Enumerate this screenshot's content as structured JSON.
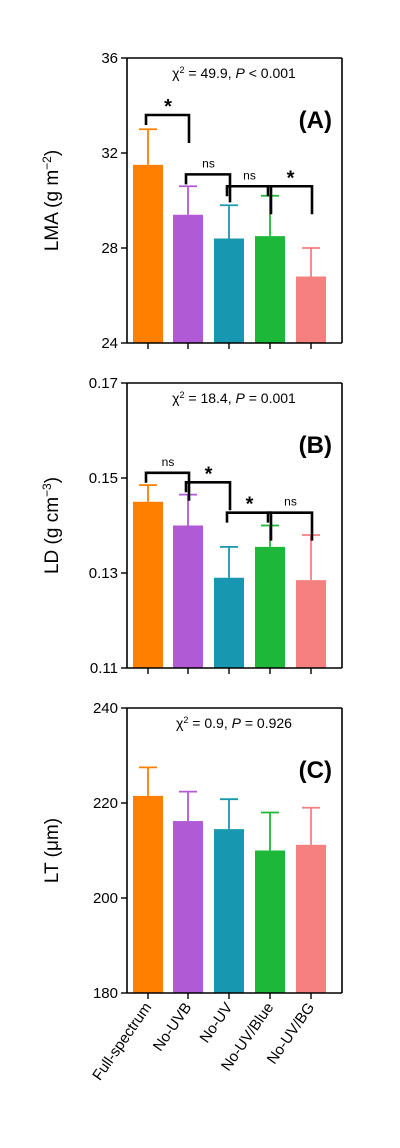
{
  "categories": [
    "Full-spectrum",
    "No-UVB",
    "No-UV",
    "No-UV/Blue",
    "No-UV/BG"
  ],
  "colors": [
    "#ff7f00",
    "#b05ad6",
    "#1797b0",
    "#1db83a",
    "#f58080"
  ],
  "chart_data": [
    {
      "type": "bar",
      "panel": "(A)",
      "ylabel_main": "LMA (g m",
      "ylabel_sup": "−2",
      "ylabel_end": ")",
      "stat_prefix": "χ",
      "stat_sup": "2",
      "stat_mid": " = 49.9, ",
      "stat_p": "P",
      "stat_end": " < 0.001",
      "ylim": [
        24,
        36
      ],
      "yticks": [
        24,
        28,
        32,
        36
      ],
      "ytick_labels": [
        "24",
        "28",
        "32",
        "36"
      ],
      "categories": [
        "Full-spectrum",
        "No-UVB",
        "No-UV",
        "No-UV/Blue",
        "No-UV/BG"
      ],
      "values": [
        31.5,
        29.4,
        28.4,
        28.5,
        26.8
      ],
      "errors": [
        1.5,
        1.2,
        1.4,
        1.7,
        1.2
      ],
      "comparisons": [
        {
          "from": 0,
          "to": 1,
          "label": "*",
          "y": 33.6
        },
        {
          "from": 1,
          "to": 2,
          "label": "ns",
          "y": 31.1
        },
        {
          "from": 2,
          "to": 3,
          "label": "ns",
          "y": 30.6
        },
        {
          "from": 3,
          "to": 4,
          "label": "*",
          "y": 30.6
        }
      ]
    },
    {
      "type": "bar",
      "panel": "(B)",
      "ylabel_main": "LD (g cm",
      "ylabel_sup": "−3",
      "ylabel_end": ")",
      "stat_prefix": "χ",
      "stat_sup": "2",
      "stat_mid": " = 18.4, ",
      "stat_p": "P",
      "stat_end": " = 0.001",
      "ylim": [
        0.11,
        0.17
      ],
      "yticks": [
        0.11,
        0.13,
        0.15,
        0.17
      ],
      "ytick_labels": [
        "0.11",
        "0.13",
        "0.15",
        "0.17"
      ],
      "categories": [
        "Full-spectrum",
        "No-UVB",
        "No-UV",
        "No-UV/Blue",
        "No-UV/BG"
      ],
      "values": [
        0.145,
        0.14,
        0.129,
        0.1355,
        0.1285
      ],
      "errors": [
        0.0035,
        0.0065,
        0.0065,
        0.0045,
        0.0095
      ],
      "comparisons": [
        {
          "from": 0,
          "to": 1,
          "label": "ns",
          "y": 0.1511
        },
        {
          "from": 1,
          "to": 2,
          "label": "*",
          "y": 0.1491
        },
        {
          "from": 2,
          "to": 3,
          "label": "*",
          "y": 0.1427
        },
        {
          "from": 3,
          "to": 4,
          "label": "ns",
          "y": 0.1427
        }
      ]
    },
    {
      "type": "bar",
      "panel": "(C)",
      "ylabel_main": "LT (μm)",
      "ylabel_sup": "",
      "ylabel_end": "",
      "stat_prefix": "χ",
      "stat_sup": "2",
      "stat_mid": " = 0.9, ",
      "stat_p": "P",
      "stat_end": " = 0.926",
      "ylim": [
        180,
        240
      ],
      "yticks": [
        180,
        200,
        220,
        240
      ],
      "ytick_labels": [
        "180",
        "200",
        "220",
        "240"
      ],
      "categories": [
        "Full-spectrum",
        "No-UVB",
        "No-UV",
        "No-UV/Blue",
        "No-UV/BG"
      ],
      "values": [
        221.5,
        216.2,
        214.5,
        210,
        211.2
      ],
      "errors": [
        6,
        6.2,
        6.3,
        8,
        7.8
      ],
      "comparisons": []
    }
  ]
}
